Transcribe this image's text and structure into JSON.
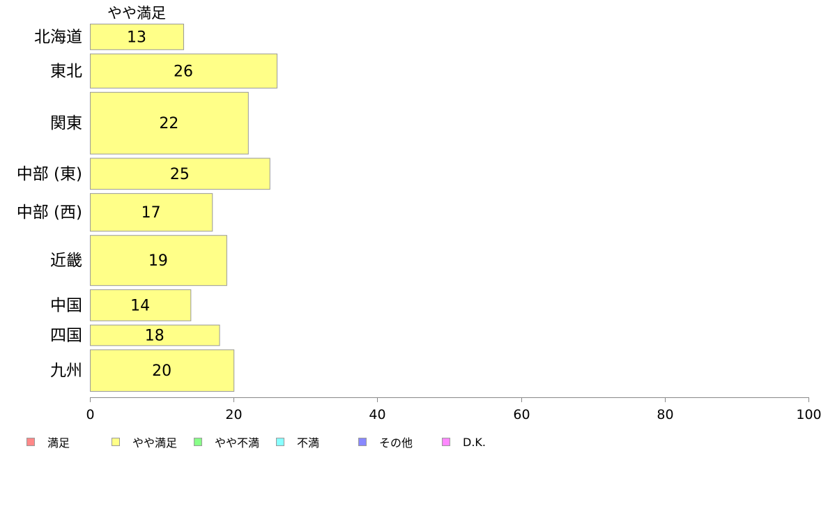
{
  "chart_data": {
    "type": "bar",
    "orientation": "horizontal",
    "series_header": "やや満足",
    "categories": [
      "北海道",
      "東北",
      "関東",
      "中部 (東)",
      "中部 (西)",
      "近畿",
      "中国",
      "四国",
      "九州"
    ],
    "category_weights": [
      0.66,
      0.88,
      1.59,
      0.8,
      0.97,
      1.29,
      0.8,
      0.53,
      1.07
    ],
    "series": [
      {
        "name": "やや満足",
        "color": "#ffff88",
        "values": [
          13,
          26,
          22,
          25,
          17,
          19,
          14,
          18,
          20
        ]
      }
    ],
    "xlim": [
      0,
      100
    ],
    "xticks": [
      0,
      20,
      40,
      60,
      80,
      100
    ],
    "legend": {
      "placement": "bottom",
      "items": [
        {
          "label": "満足",
          "color": "#ff8888"
        },
        {
          "label": "やや満足",
          "color": "#ffff88"
        },
        {
          "label": "やや不満",
          "color": "#88ff88"
        },
        {
          "label": "不満",
          "color": "#88ffff"
        },
        {
          "label": "その他",
          "color": "#8888ff"
        },
        {
          "label": "D.K.",
          "color": "#ff88ff"
        }
      ]
    },
    "grid": false
  }
}
